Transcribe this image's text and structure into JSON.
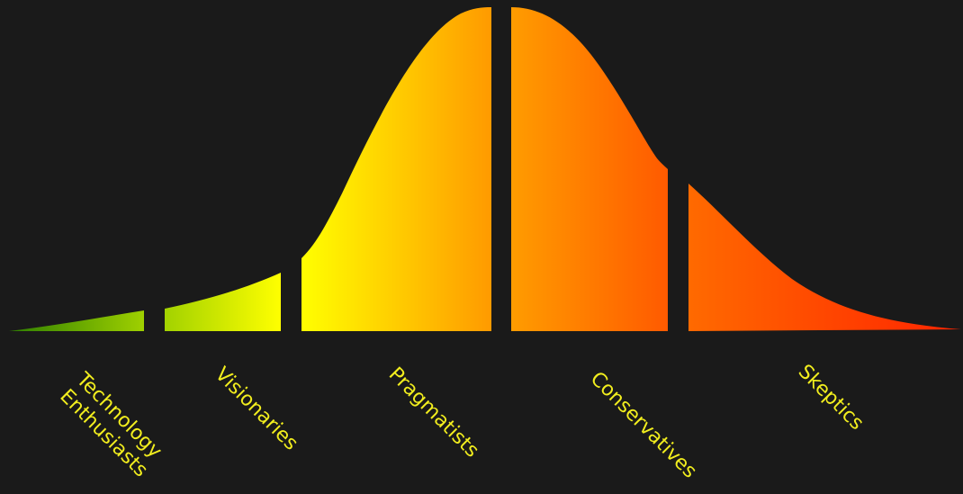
{
  "diagram": {
    "colors": {
      "background": "#1a1a1a",
      "label": "#f2ee1e"
    },
    "segments": [
      {
        "id": "technology-enthusiasts",
        "lines": [
          "Technology",
          "Enthusiasts"
        ],
        "gradient": [
          "#2e7f00",
          "#9fd000"
        ]
      },
      {
        "id": "visionaries",
        "lines": [
          "Visionaries"
        ],
        "gradient": [
          "#a2d200",
          "#ffff00"
        ]
      },
      {
        "id": "pragmatists",
        "lines": [
          "Pragmatists"
        ],
        "gradient": [
          "#ffff00",
          "#ff9a00"
        ]
      },
      {
        "id": "conservatives",
        "lines": [
          "Conservatives"
        ],
        "gradient": [
          "#ff9c00",
          "#ff5a00"
        ]
      },
      {
        "id": "skeptics",
        "lines": [
          "Skeptics"
        ],
        "gradient": [
          "#ff6a00",
          "#ff2400"
        ]
      }
    ]
  }
}
